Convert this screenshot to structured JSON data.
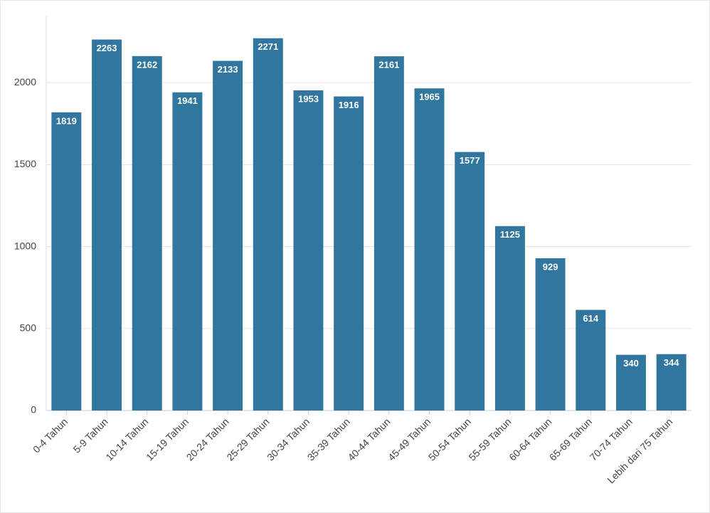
{
  "chart_data": {
    "type": "bar",
    "categories": [
      "0-4 Tahun",
      "5-9 Tahun",
      "10-14 Tahun",
      "15-19 Tahun",
      "20-24 Tahun",
      "25-29 Tahun",
      "30-34 Tahun",
      "35-39 Tahun",
      "40-44 Tahun",
      "45-49 Tahun",
      "50-54 Tahun",
      "55-59 Tahun",
      "60-64 Tahun",
      "65-69 Tahun",
      "70-74 Tahun",
      "Lebih dari 75 Tahun"
    ],
    "values": [
      1819,
      2263,
      2162,
      1941,
      2133,
      2271,
      1953,
      1916,
      2161,
      1965,
      1577,
      1125,
      929,
      614,
      340,
      344
    ],
    "color": "#31769f",
    "ylim": [
      0,
      2400
    ],
    "yticks": [
      0,
      500,
      1000,
      1500,
      2000
    ],
    "grid": true
  }
}
